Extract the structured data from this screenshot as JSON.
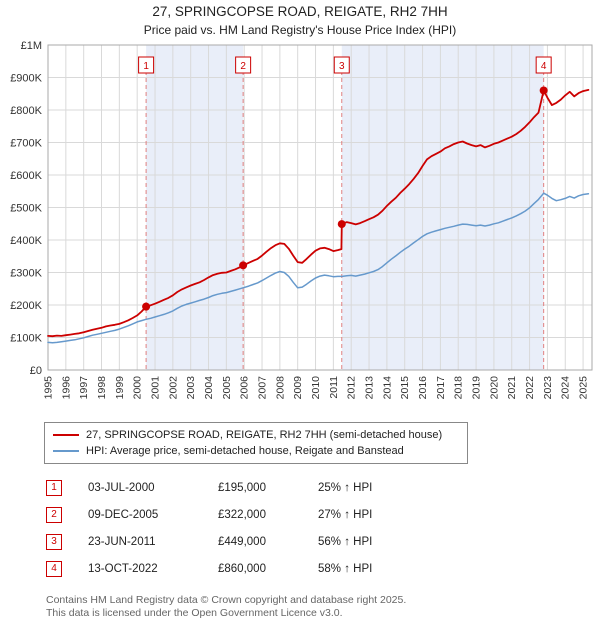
{
  "title": "27, SPRINGCOPSE ROAD, REIGATE, RH2 7HH",
  "subtitle": "Price paid vs. HM Land Registry's House Price Index (HPI)",
  "legend": {
    "series1": "27, SPRINGCOPSE ROAD, REIGATE, RH2 7HH (semi-detached house)",
    "series2": "HPI: Average price, semi-detached house, Reigate and Banstead"
  },
  "footer": {
    "line1": "Contains HM Land Registry data © Crown copyright and database right 2025.",
    "line2": "This data is licensed under the Open Government Licence v3.0."
  },
  "chart_data": {
    "type": "line",
    "x_range": [
      1995,
      2025.5
    ],
    "ylim": [
      0,
      1000
    ],
    "grid": true,
    "colors": {
      "property": "#cc0000",
      "hpi": "#6699cc",
      "band": "#e9eef9",
      "grid": "#d9d9d9",
      "border": "#aaaaaa",
      "sale_dash": "#e08080"
    },
    "y_ticks": [
      {
        "v": 0,
        "label": "£0"
      },
      {
        "v": 100,
        "label": "£100K"
      },
      {
        "v": 200,
        "label": "£200K"
      },
      {
        "v": 300,
        "label": "£300K"
      },
      {
        "v": 400,
        "label": "£400K"
      },
      {
        "v": 500,
        "label": "£500K"
      },
      {
        "v": 600,
        "label": "£600K"
      },
      {
        "v": 700,
        "label": "£700K"
      },
      {
        "v": 800,
        "label": "£800K"
      },
      {
        "v": 900,
        "label": "£900K"
      },
      {
        "v": 1000,
        "label": "£1M"
      }
    ],
    "x_ticks": [
      1995,
      1996,
      1997,
      1998,
      1999,
      2000,
      2001,
      2002,
      2003,
      2004,
      2005,
      2006,
      2007,
      2008,
      2009,
      2010,
      2011,
      2012,
      2013,
      2014,
      2015,
      2016,
      2017,
      2018,
      2019,
      2020,
      2021,
      2022,
      2023,
      2024,
      2025
    ],
    "bands": [
      [
        2000.5,
        2005.94
      ],
      [
        2011.47,
        2022.79
      ]
    ],
    "series": [
      {
        "name": "27, SPRINGCOPSE ROAD, REIGATE, RH2 7HH (semi-detached house)",
        "color": "#cc0000",
        "width": 1.8,
        "points": [
          [
            1995,
            105
          ],
          [
            1995.25,
            104
          ],
          [
            1995.5,
            106
          ],
          [
            1995.75,
            105
          ],
          [
            1996,
            107
          ],
          [
            1996.25,
            109
          ],
          [
            1996.5,
            111
          ],
          [
            1996.75,
            113
          ],
          [
            1997,
            116
          ],
          [
            1997.25,
            120
          ],
          [
            1997.5,
            124
          ],
          [
            1997.75,
            127
          ],
          [
            1998,
            130
          ],
          [
            1998.25,
            134
          ],
          [
            1998.5,
            137
          ],
          [
            1998.75,
            139
          ],
          [
            1999,
            142
          ],
          [
            1999.25,
            147
          ],
          [
            1999.5,
            153
          ],
          [
            1999.75,
            160
          ],
          [
            2000,
            168
          ],
          [
            2000.25,
            180
          ],
          [
            2000.5,
            195
          ],
          [
            2000.75,
            199
          ],
          [
            2001,
            204
          ],
          [
            2001.25,
            210
          ],
          [
            2001.5,
            216
          ],
          [
            2001.75,
            222
          ],
          [
            2002,
            230
          ],
          [
            2002.25,
            240
          ],
          [
            2002.5,
            248
          ],
          [
            2002.75,
            254
          ],
          [
            2003,
            260
          ],
          [
            2003.25,
            265
          ],
          [
            2003.5,
            270
          ],
          [
            2003.75,
            277
          ],
          [
            2004,
            285
          ],
          [
            2004.25,
            292
          ],
          [
            2004.5,
            296
          ],
          [
            2004.75,
            299
          ],
          [
            2005,
            300
          ],
          [
            2005.25,
            305
          ],
          [
            2005.5,
            310
          ],
          [
            2005.75,
            316
          ],
          [
            2005.94,
            322
          ],
          [
            2006.25,
            330
          ],
          [
            2006.5,
            336
          ],
          [
            2006.75,
            342
          ],
          [
            2007,
            352
          ],
          [
            2007.25,
            364
          ],
          [
            2007.5,
            375
          ],
          [
            2007.75,
            384
          ],
          [
            2008,
            390
          ],
          [
            2008.25,
            388
          ],
          [
            2008.5,
            373
          ],
          [
            2008.75,
            352
          ],
          [
            2009,
            332
          ],
          [
            2009.25,
            330
          ],
          [
            2009.5,
            342
          ],
          [
            2009.75,
            355
          ],
          [
            2010,
            367
          ],
          [
            2010.25,
            374
          ],
          [
            2010.5,
            376
          ],
          [
            2010.75,
            372
          ],
          [
            2011,
            366
          ],
          [
            2011.25,
            369
          ],
          [
            2011.45,
            372
          ],
          [
            2011.47,
            449
          ],
          [
            2011.75,
            455
          ],
          [
            2012,
            452
          ],
          [
            2012.25,
            448
          ],
          [
            2012.5,
            452
          ],
          [
            2012.75,
            458
          ],
          [
            2013,
            464
          ],
          [
            2013.25,
            470
          ],
          [
            2013.5,
            478
          ],
          [
            2013.75,
            490
          ],
          [
            2014,
            505
          ],
          [
            2014.25,
            518
          ],
          [
            2014.5,
            530
          ],
          [
            2014.75,
            545
          ],
          [
            2015,
            558
          ],
          [
            2015.25,
            572
          ],
          [
            2015.5,
            588
          ],
          [
            2015.75,
            606
          ],
          [
            2016,
            628
          ],
          [
            2016.25,
            648
          ],
          [
            2016.5,
            658
          ],
          [
            2016.75,
            665
          ],
          [
            2017,
            672
          ],
          [
            2017.25,
            682
          ],
          [
            2017.5,
            688
          ],
          [
            2017.75,
            695
          ],
          [
            2018,
            700
          ],
          [
            2018.25,
            703
          ],
          [
            2018.5,
            697
          ],
          [
            2018.75,
            692
          ],
          [
            2019,
            688
          ],
          [
            2019.25,
            692
          ],
          [
            2019.5,
            685
          ],
          [
            2019.75,
            690
          ],
          [
            2020,
            696
          ],
          [
            2020.25,
            700
          ],
          [
            2020.5,
            706
          ],
          [
            2020.75,
            712
          ],
          [
            2021,
            718
          ],
          [
            2021.25,
            726
          ],
          [
            2021.5,
            736
          ],
          [
            2021.75,
            748
          ],
          [
            2022,
            762
          ],
          [
            2022.25,
            778
          ],
          [
            2022.5,
            792
          ],
          [
            2022.79,
            860
          ],
          [
            2023,
            838
          ],
          [
            2023.25,
            815
          ],
          [
            2023.5,
            822
          ],
          [
            2023.75,
            832
          ],
          [
            2024,
            845
          ],
          [
            2024.25,
            856
          ],
          [
            2024.5,
            842
          ],
          [
            2024.75,
            852
          ],
          [
            2025,
            858
          ],
          [
            2025.3,
            862
          ]
        ]
      },
      {
        "name": "HPI: Average price, semi-detached house, Reigate and Banstead",
        "color": "#6699cc",
        "width": 1.5,
        "points": [
          [
            1995,
            85
          ],
          [
            1995.25,
            84
          ],
          [
            1995.5,
            85
          ],
          [
            1995.75,
            87
          ],
          [
            1996,
            89
          ],
          [
            1996.25,
            91
          ],
          [
            1996.5,
            93
          ],
          [
            1996.75,
            96
          ],
          [
            1997,
            99
          ],
          [
            1997.25,
            103
          ],
          [
            1997.5,
            107
          ],
          [
            1997.75,
            110
          ],
          [
            1998,
            113
          ],
          [
            1998.25,
            116
          ],
          [
            1998.5,
            119
          ],
          [
            1998.75,
            122
          ],
          [
            1999,
            126
          ],
          [
            1999.25,
            131
          ],
          [
            1999.5,
            136
          ],
          [
            1999.75,
            142
          ],
          [
            2000,
            148
          ],
          [
            2000.25,
            152
          ],
          [
            2000.5,
            156
          ],
          [
            2000.75,
            159
          ],
          [
            2001,
            163
          ],
          [
            2001.25,
            167
          ],
          [
            2001.5,
            171
          ],
          [
            2001.75,
            176
          ],
          [
            2002,
            182
          ],
          [
            2002.25,
            190
          ],
          [
            2002.5,
            197
          ],
          [
            2002.75,
            202
          ],
          [
            2003,
            206
          ],
          [
            2003.25,
            210
          ],
          [
            2003.5,
            214
          ],
          [
            2003.75,
            218
          ],
          [
            2004,
            223
          ],
          [
            2004.25,
            229
          ],
          [
            2004.5,
            233
          ],
          [
            2004.75,
            236
          ],
          [
            2005,
            238
          ],
          [
            2005.25,
            242
          ],
          [
            2005.5,
            246
          ],
          [
            2005.75,
            250
          ],
          [
            2005.94,
            253
          ],
          [
            2006.25,
            258
          ],
          [
            2006.5,
            263
          ],
          [
            2006.75,
            268
          ],
          [
            2007,
            275
          ],
          [
            2007.25,
            283
          ],
          [
            2007.5,
            291
          ],
          [
            2007.75,
            298
          ],
          [
            2008,
            303
          ],
          [
            2008.25,
            300
          ],
          [
            2008.5,
            288
          ],
          [
            2008.75,
            270
          ],
          [
            2009,
            253
          ],
          [
            2009.25,
            255
          ],
          [
            2009.5,
            264
          ],
          [
            2009.75,
            274
          ],
          [
            2010,
            283
          ],
          [
            2010.25,
            289
          ],
          [
            2010.5,
            292
          ],
          [
            2010.75,
            290
          ],
          [
            2011,
            287
          ],
          [
            2011.25,
            288
          ],
          [
            2011.5,
            288
          ],
          [
            2011.75,
            290
          ],
          [
            2012,
            291
          ],
          [
            2012.25,
            289
          ],
          [
            2012.5,
            292
          ],
          [
            2012.75,
            295
          ],
          [
            2013,
            299
          ],
          [
            2013.25,
            303
          ],
          [
            2013.5,
            309
          ],
          [
            2013.75,
            318
          ],
          [
            2014,
            330
          ],
          [
            2014.25,
            341
          ],
          [
            2014.5,
            351
          ],
          [
            2014.75,
            362
          ],
          [
            2015,
            372
          ],
          [
            2015.25,
            381
          ],
          [
            2015.5,
            391
          ],
          [
            2015.75,
            401
          ],
          [
            2016,
            411
          ],
          [
            2016.25,
            419
          ],
          [
            2016.5,
            424
          ],
          [
            2016.75,
            428
          ],
          [
            2017,
            432
          ],
          [
            2017.25,
            436
          ],
          [
            2017.5,
            439
          ],
          [
            2017.75,
            442
          ],
          [
            2018,
            446
          ],
          [
            2018.25,
            449
          ],
          [
            2018.5,
            448
          ],
          [
            2018.75,
            446
          ],
          [
            2019,
            444
          ],
          [
            2019.25,
            446
          ],
          [
            2019.5,
            443
          ],
          [
            2019.75,
            446
          ],
          [
            2020,
            450
          ],
          [
            2020.25,
            453
          ],
          [
            2020.5,
            458
          ],
          [
            2020.75,
            463
          ],
          [
            2021,
            468
          ],
          [
            2021.25,
            474
          ],
          [
            2021.5,
            481
          ],
          [
            2021.75,
            489
          ],
          [
            2022,
            499
          ],
          [
            2022.25,
            512
          ],
          [
            2022.5,
            525
          ],
          [
            2022.79,
            544
          ],
          [
            2023,
            538
          ],
          [
            2023.25,
            528
          ],
          [
            2023.5,
            521
          ],
          [
            2023.75,
            524
          ],
          [
            2024,
            528
          ],
          [
            2024.25,
            534
          ],
          [
            2024.5,
            529
          ],
          [
            2024.75,
            536
          ],
          [
            2025,
            540
          ],
          [
            2025.3,
            542
          ]
        ]
      }
    ],
    "sales": [
      {
        "num": "1",
        "x": 2000.5,
        "y": 195,
        "date": "03-JUL-2000",
        "price": "£195,000",
        "hpi": "25% ↑ HPI"
      },
      {
        "num": "2",
        "x": 2005.94,
        "y": 322,
        "date": "09-DEC-2005",
        "price": "£322,000",
        "hpi": "27% ↑ HPI"
      },
      {
        "num": "3",
        "x": 2011.47,
        "y": 449,
        "date": "23-JUN-2011",
        "price": "£449,000",
        "hpi": "56% ↑ HPI"
      },
      {
        "num": "4",
        "x": 2022.79,
        "y": 860,
        "date": "13-OCT-2022",
        "price": "£860,000",
        "hpi": "58% ↑ HPI"
      }
    ]
  }
}
